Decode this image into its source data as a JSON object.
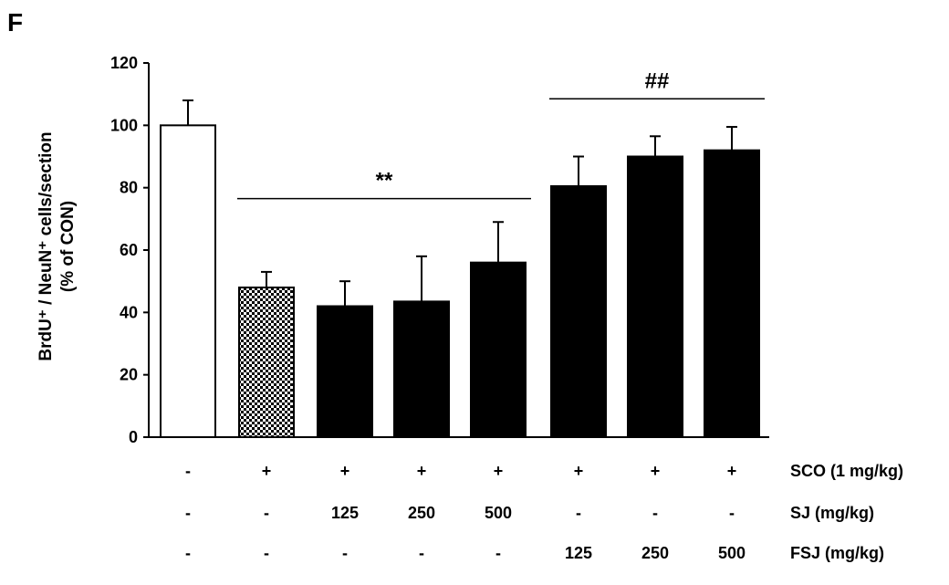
{
  "panel_label": "F",
  "chart_data": {
    "type": "bar",
    "ylabel_line1": "BrdU⁺ / NeuN⁺ cells/section",
    "ylabel_line2": "(% of CON)",
    "ylim": [
      0,
      120
    ],
    "yticks": [
      "0",
      "20",
      "40",
      "60",
      "80",
      "100",
      "120"
    ],
    "grid": false,
    "values": [
      100,
      48,
      42,
      43.5,
      56,
      80.5,
      90,
      92
    ],
    "errors": [
      8,
      5,
      8,
      14.5,
      13,
      9.5,
      6.5,
      7.5
    ],
    "fills": [
      "white",
      "checker",
      "black",
      "black",
      "black",
      "black",
      "black",
      "black"
    ],
    "conditions": [
      {
        "label": "SCO (1 mg/kg)",
        "values": [
          "-",
          "+",
          "+",
          "+",
          "+",
          "+",
          "+",
          "+"
        ]
      },
      {
        "label": "SJ (mg/kg)",
        "values": [
          "-",
          "-",
          "125",
          "250",
          "500",
          "-",
          "-",
          "-"
        ]
      },
      {
        "label": "FSJ (mg/kg)",
        "values": [
          "-",
          "-",
          "-",
          "-",
          "-",
          "125",
          "250",
          "500"
        ]
      }
    ],
    "annotations": [
      {
        "text": "**",
        "from_bar": 1,
        "to_bar": 4,
        "y": 76.5
      },
      {
        "text": "##",
        "from_bar": 5,
        "to_bar": 7,
        "y": 108.5
      }
    ]
  }
}
